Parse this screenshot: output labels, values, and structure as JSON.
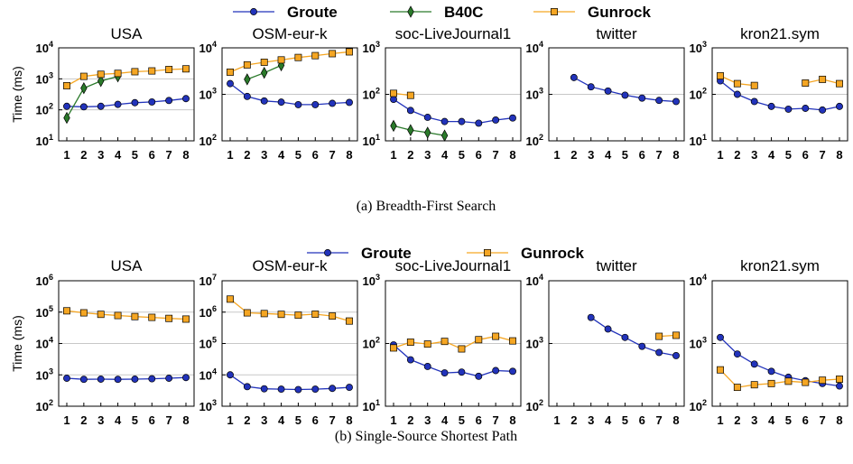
{
  "colors": {
    "Groute": "#2233bb",
    "B40C": "#2a7a2a",
    "Gunrock": "#f5a623",
    "grid": "#c8c8c8",
    "axis": "#000000"
  },
  "chart_data": [
    {
      "group": "a",
      "caption": "(a) Breadth-First Search",
      "legend": [
        "Groute",
        "B40C",
        "Gunrock"
      ],
      "ylabel": "Time (ms)",
      "panels": [
        {
          "type": "line",
          "title": "USA",
          "scale": "log",
          "ylim_exp": [
            1,
            4
          ],
          "x": [
            1,
            2,
            3,
            4,
            5,
            6,
            7,
            8
          ],
          "series": [
            {
              "name": "Groute",
              "values": [
                130,
                125,
                130,
                150,
                170,
                180,
                200,
                230
              ]
            },
            {
              "name": "B40C",
              "values": [
                55,
                500,
                850,
                1200,
                null,
                null,
                null,
                null
              ]
            },
            {
              "name": "Gunrock",
              "values": [
                600,
                1200,
                1400,
                1500,
                1700,
                1800,
                2000,
                2100
              ]
            }
          ]
        },
        {
          "type": "line",
          "title": "OSM-eur-k",
          "scale": "log",
          "ylim_exp": [
            2,
            4
          ],
          "x": [
            1,
            2,
            3,
            4,
            5,
            6,
            7,
            8
          ],
          "series": [
            {
              "name": "Groute",
              "values": [
                1700,
                900,
                720,
                680,
                600,
                600,
                640,
                670
              ]
            },
            {
              "name": "B40C",
              "values": [
                null,
                2100,
                2900,
                4200,
                null,
                null,
                null,
                null
              ]
            },
            {
              "name": "Gunrock",
              "values": [
                3000,
                4300,
                4900,
                5500,
                6200,
                6800,
                7500,
                8200
              ]
            }
          ]
        },
        {
          "type": "line",
          "title": "soc-LiveJournal1",
          "scale": "log",
          "ylim_exp": [
            1,
            3
          ],
          "x": [
            1,
            2,
            3,
            4,
            5,
            6,
            7,
            8
          ],
          "series": [
            {
              "name": "Groute",
              "values": [
                78,
                45,
                32,
                26,
                26,
                24,
                28,
                31
              ]
            },
            {
              "name": "B40C",
              "values": [
                21,
                17,
                15,
                13,
                null,
                null,
                null,
                null
              ]
            },
            {
              "name": "Gunrock",
              "values": [
                105,
                95,
                null,
                null,
                null,
                null,
                null,
                null
              ]
            }
          ]
        },
        {
          "type": "line",
          "title": "twitter",
          "scale": "log",
          "ylim_exp": [
            2,
            4
          ],
          "x": [
            1,
            2,
            3,
            4,
            5,
            6,
            7,
            8
          ],
          "series": [
            {
              "name": "Groute",
              "values": [
                null,
                2300,
                1450,
                1180,
                960,
                830,
                740,
                700
              ]
            },
            {
              "name": "Gunrock",
              "values": [
                null,
                null,
                null,
                null,
                null,
                null,
                null,
                null
              ]
            }
          ]
        },
        {
          "type": "line",
          "title": "kron21.sym",
          "scale": "log",
          "ylim_exp": [
            1,
            3
          ],
          "x": [
            1,
            2,
            3,
            4,
            5,
            6,
            7,
            8
          ],
          "series": [
            {
              "name": "Groute",
              "values": [
                195,
                100,
                70,
                55,
                48,
                50,
                46,
                55
              ]
            },
            {
              "name": "Gunrock",
              "values": [
                250,
                170,
                155,
                null,
                null,
                175,
                210,
                170
              ]
            }
          ]
        }
      ]
    },
    {
      "group": "b",
      "caption": "(b) Single-Source Shortest Path",
      "legend": [
        "Groute",
        "Gunrock"
      ],
      "ylabel": "Time (ms)",
      "panels": [
        {
          "type": "line",
          "title": "USA",
          "scale": "log",
          "ylim_exp": [
            2,
            6
          ],
          "x": [
            1,
            2,
            3,
            4,
            5,
            6,
            7,
            8
          ],
          "series": [
            {
              "name": "Groute",
              "values": [
                780,
                720,
                730,
                720,
                730,
                750,
                780,
                820
              ]
            },
            {
              "name": "Gunrock",
              "values": [
                110000,
                95000,
                85000,
                78000,
                72000,
                68000,
                63000,
                60000
              ]
            }
          ]
        },
        {
          "type": "line",
          "title": "OSM-eur-k",
          "scale": "log",
          "ylim_exp": [
            3,
            7
          ],
          "x": [
            1,
            2,
            3,
            4,
            5,
            6,
            7,
            8
          ],
          "series": [
            {
              "name": "Groute",
              "values": [
                10000,
                4200,
                3600,
                3500,
                3400,
                3500,
                3700,
                4000
              ]
            },
            {
              "name": "Gunrock",
              "values": [
                2600000,
                950000,
                900000,
                850000,
                800000,
                860000,
                750000,
                520000
              ]
            }
          ]
        },
        {
          "type": "line",
          "title": "soc-LiveJournal1",
          "scale": "log",
          "ylim_exp": [
            1,
            3
          ],
          "x": [
            1,
            2,
            3,
            4,
            5,
            6,
            7,
            8
          ],
          "series": [
            {
              "name": "Groute",
              "values": [
                95,
                55,
                43,
                34,
                35,
                30,
                37,
                36
              ]
            },
            {
              "name": "Gunrock",
              "values": [
                85,
                105,
                98,
                108,
                82,
                115,
                130,
                110
              ]
            }
          ]
        },
        {
          "type": "line",
          "title": "twitter",
          "scale": "log",
          "ylim_exp": [
            2,
            4
          ],
          "x": [
            1,
            2,
            3,
            4,
            5,
            6,
            7,
            8
          ],
          "series": [
            {
              "name": "Groute",
              "values": [
                null,
                null,
                2600,
                1700,
                1250,
                900,
                720,
                640
              ]
            },
            {
              "name": "Gunrock",
              "values": [
                null,
                null,
                null,
                null,
                null,
                null,
                1300,
                1350
              ]
            }
          ]
        },
        {
          "type": "line",
          "title": "kron21.sym",
          "scale": "log",
          "ylim_exp": [
            2,
            4
          ],
          "x": [
            1,
            2,
            3,
            4,
            5,
            6,
            7,
            8
          ],
          "series": [
            {
              "name": "Groute",
              "values": [
                1250,
                680,
                470,
                360,
                290,
                255,
                230,
                210
              ]
            },
            {
              "name": "Gunrock",
              "values": [
                380,
                200,
                220,
                230,
                250,
                240,
                260,
                270
              ]
            }
          ]
        }
      ]
    }
  ]
}
